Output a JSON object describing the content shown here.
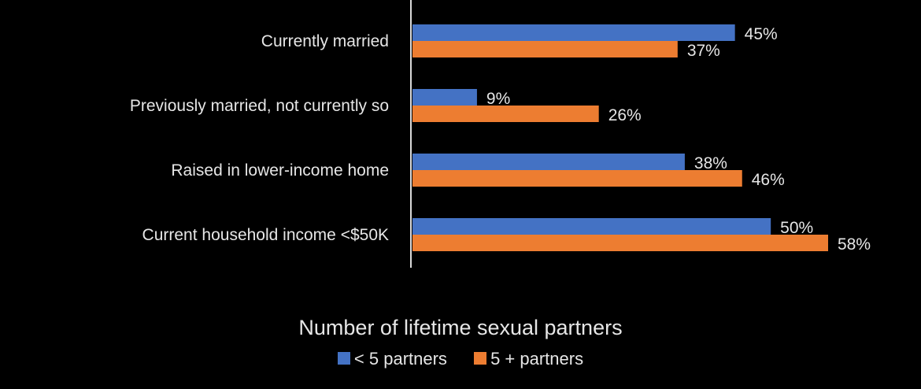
{
  "chart_data": {
    "type": "bar",
    "orientation": "horizontal",
    "categories": [
      "Currently married",
      "Previously married, not currently so",
      "Raised in lower-income home",
      "Current household income <$50K"
    ],
    "series": [
      {
        "name": "< 5 partners",
        "values": [
          45,
          9,
          38,
          50
        ],
        "color": "#4472C4"
      },
      {
        "name": "5 + partners",
        "values": [
          37,
          26,
          46,
          58
        ],
        "color": "#ED7D31"
      }
    ],
    "value_labels": [
      [
        "45%",
        "9%",
        "38%",
        "50%"
      ],
      [
        "37%",
        "26%",
        "46%",
        "58%"
      ]
    ],
    "xlim": [
      0,
      58
    ],
    "legend": {
      "title": "Number of lifetime sexual partners",
      "position": "bottom"
    },
    "axis_color": "#d9d9d9",
    "background": "#000000"
  }
}
